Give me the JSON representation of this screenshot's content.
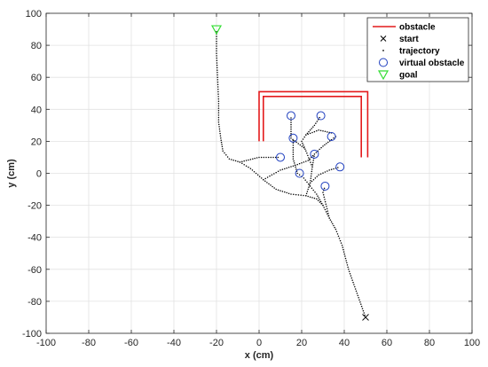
{
  "chart_data": {
    "type": "scatter",
    "xlabel": "x (cm)",
    "ylabel": "y (cm)",
    "xlim": [
      -100,
      100
    ],
    "ylim": [
      -100,
      100
    ],
    "x_ticks": [
      -100,
      -80,
      -60,
      -40,
      -20,
      0,
      20,
      40,
      60,
      80,
      100
    ],
    "y_ticks": [
      -100,
      -80,
      -60,
      -40,
      -20,
      0,
      20,
      40,
      60,
      80,
      100
    ],
    "grid": true,
    "legend_position": "top-right",
    "colors": {
      "obstacle": "#e41a1c",
      "start": "#000000",
      "trajectory": "#000000",
      "virtual_obstacle": "#1f3fbf",
      "goal": "#33dd33"
    },
    "legend": [
      {
        "key": "obstacle",
        "label": "obstacle",
        "marker": "line"
      },
      {
        "key": "start",
        "label": "start",
        "marker": "x"
      },
      {
        "key": "trajectory",
        "label": "trajectory",
        "marker": "dot"
      },
      {
        "key": "virtual_obstacle",
        "label": "virtual obstacle",
        "marker": "circle"
      },
      {
        "key": "goal",
        "label": "goal",
        "marker": "triangle"
      }
    ],
    "obstacles": [
      [
        [
          0,
          20
        ],
        [
          0,
          51
        ],
        [
          51,
          51
        ],
        [
          51,
          10
        ]
      ],
      [
        [
          2,
          20
        ],
        [
          2,
          48
        ],
        [
          48,
          48
        ],
        [
          48,
          10
        ]
      ]
    ],
    "start": [
      50,
      -90
    ],
    "goal": [
      -20,
      90
    ],
    "virtual_obstacles": [
      [
        15,
        36
      ],
      [
        29,
        36
      ],
      [
        16,
        22
      ],
      [
        34,
        23
      ],
      [
        10,
        10
      ],
      [
        26,
        12
      ],
      [
        38,
        4
      ],
      [
        19,
        0
      ],
      [
        31,
        -8
      ]
    ],
    "trajectories": [
      [
        [
          50,
          -90
        ],
        [
          46,
          -75
        ],
        [
          42,
          -60
        ],
        [
          39,
          -45
        ],
        [
          36,
          -35
        ],
        [
          33,
          -28
        ],
        [
          30,
          -20
        ],
        [
          27,
          -16
        ],
        [
          22,
          -14
        ],
        [
          15,
          -13
        ],
        [
          8,
          -10
        ],
        [
          2,
          -4
        ],
        [
          -4,
          3
        ],
        [
          -9,
          7
        ],
        [
          -14,
          9
        ],
        [
          -17,
          14
        ],
        [
          -18,
          22
        ],
        [
          -19,
          32
        ],
        [
          -19,
          45
        ],
        [
          -19.5,
          60
        ],
        [
          -20,
          75
        ],
        [
          -20,
          90
        ]
      ],
      [
        [
          30,
          -20
        ],
        [
          27,
          -13
        ],
        [
          24,
          -8
        ],
        [
          21,
          -3
        ],
        [
          18,
          0
        ]
      ],
      [
        [
          33,
          -28
        ],
        [
          30,
          -12
        ],
        [
          31,
          -8
        ]
      ],
      [
        [
          22,
          -14
        ],
        [
          24,
          -6
        ],
        [
          25,
          4
        ],
        [
          26,
          12
        ],
        [
          30,
          17
        ],
        [
          34,
          21
        ],
        [
          37,
          24
        ]
      ],
      [
        [
          24,
          -6
        ],
        [
          28,
          -1
        ],
        [
          33,
          2
        ],
        [
          38,
          4
        ]
      ],
      [
        [
          2,
          -4
        ],
        [
          10,
          2
        ],
        [
          17,
          5
        ],
        [
          23,
          8
        ],
        [
          26,
          12
        ]
      ],
      [
        [
          -9,
          7
        ],
        [
          0,
          10
        ],
        [
          10,
          10
        ]
      ],
      [
        [
          25,
          4
        ],
        [
          22,
          14
        ],
        [
          20,
          20
        ],
        [
          22,
          24
        ],
        [
          28,
          27
        ],
        [
          35,
          25
        ]
      ],
      [
        [
          21,
          16
        ],
        [
          15,
          22
        ],
        [
          15,
          36
        ]
      ],
      [
        [
          22,
          24
        ],
        [
          26,
          30
        ],
        [
          29,
          36
        ]
      ],
      [
        [
          18,
          0
        ],
        [
          16,
          9
        ],
        [
          16,
          16
        ],
        [
          16,
          22
        ]
      ]
    ]
  }
}
